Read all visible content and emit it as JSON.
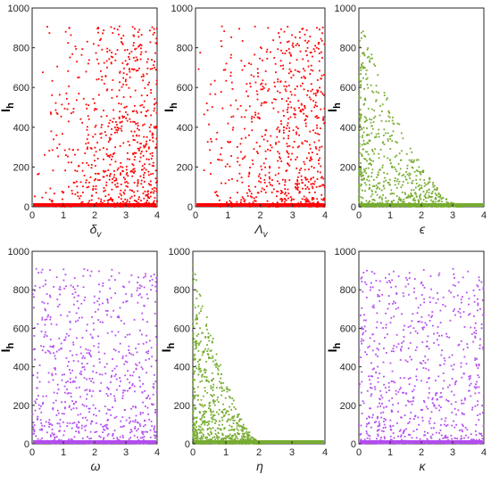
{
  "chart_data": [
    {
      "type": "scatter",
      "panel": "a",
      "xlabel": "δ",
      "xlabel_sub": "v",
      "ylabel": "I",
      "ylabel_sub": "h",
      "xlim": [
        0,
        4
      ],
      "ylim": [
        0,
        1000
      ],
      "xticks": [
        "0",
        "1",
        "2",
        "3",
        "4"
      ],
      "yticks": [
        "0",
        "200",
        "400",
        "600",
        "800",
        "1000"
      ],
      "color": "#ff0000",
      "shape": "uniform-growing-density-to-right",
      "point_count": 750,
      "seed": 11,
      "dense_baseline": true
    },
    {
      "type": "scatter",
      "panel": "b",
      "xlabel": "Λ",
      "xlabel_sub": "v",
      "ylabel": "I",
      "ylabel_sub": "h",
      "xlim": [
        0,
        4
      ],
      "ylim": [
        0,
        1000
      ],
      "xticks": [
        "0",
        "1",
        "2",
        "3",
        "4"
      ],
      "yticks": [
        "0",
        "200",
        "400",
        "600",
        "800",
        "1000"
      ],
      "color": "#ff0000",
      "shape": "uniform-growing-density-to-right",
      "point_count": 750,
      "seed": 23,
      "dense_baseline": true
    },
    {
      "type": "scatter",
      "panel": "c",
      "xlabel": "ϵ",
      "xlabel_sub": "",
      "ylabel": "I",
      "ylabel_sub": "h",
      "xlim": [
        0,
        4
      ],
      "ylim": [
        0,
        1000
      ],
      "xticks": [
        "0",
        "1",
        "2",
        "3",
        "4"
      ],
      "yticks": [
        "0",
        "200",
        "400",
        "600",
        "800",
        "1000"
      ],
      "color": "#77ac30",
      "shape": "decaying-envelope",
      "envelope_cutoff": 3.3,
      "point_count": 750,
      "seed": 37,
      "dense_baseline": true
    },
    {
      "type": "scatter",
      "panel": "d",
      "xlabel": "ω",
      "xlabel_sub": "",
      "ylabel": "I",
      "ylabel_sub": "h",
      "xlim": [
        0,
        4
      ],
      "ylim": [
        0,
        1000
      ],
      "xticks": [
        "0",
        "1",
        "2",
        "3",
        "4"
      ],
      "yticks": [
        "0",
        "200",
        "400",
        "600",
        "800",
        "1000"
      ],
      "color": "#b44cf0",
      "shape": "uniform",
      "point_count": 750,
      "seed": 41,
      "dense_baseline": true
    },
    {
      "type": "scatter",
      "panel": "e",
      "xlabel": "η",
      "xlabel_sub": "",
      "ylabel": "I",
      "ylabel_sub": "h",
      "xlim": [
        0,
        4
      ],
      "ylim": [
        0,
        1000
      ],
      "xticks": [
        "0",
        "1",
        "2",
        "3",
        "4"
      ],
      "yticks": [
        "0",
        "200",
        "400",
        "600",
        "800",
        "1000"
      ],
      "color": "#77ac30",
      "shape": "decaying-envelope",
      "envelope_cutoff": 2.1,
      "point_count": 750,
      "seed": 53,
      "dense_baseline": true
    },
    {
      "type": "scatter",
      "panel": "f",
      "xlabel": "κ",
      "xlabel_sub": "",
      "ylabel": "I",
      "ylabel_sub": "h",
      "xlim": [
        0,
        4
      ],
      "ylim": [
        0,
        1000
      ],
      "xticks": [
        "0",
        "1",
        "2",
        "3",
        "4"
      ],
      "yticks": [
        "0",
        "200",
        "400",
        "600",
        "800",
        "1000"
      ],
      "color": "#b44cf0",
      "shape": "uniform",
      "point_count": 750,
      "seed": 67,
      "dense_baseline": true
    }
  ]
}
